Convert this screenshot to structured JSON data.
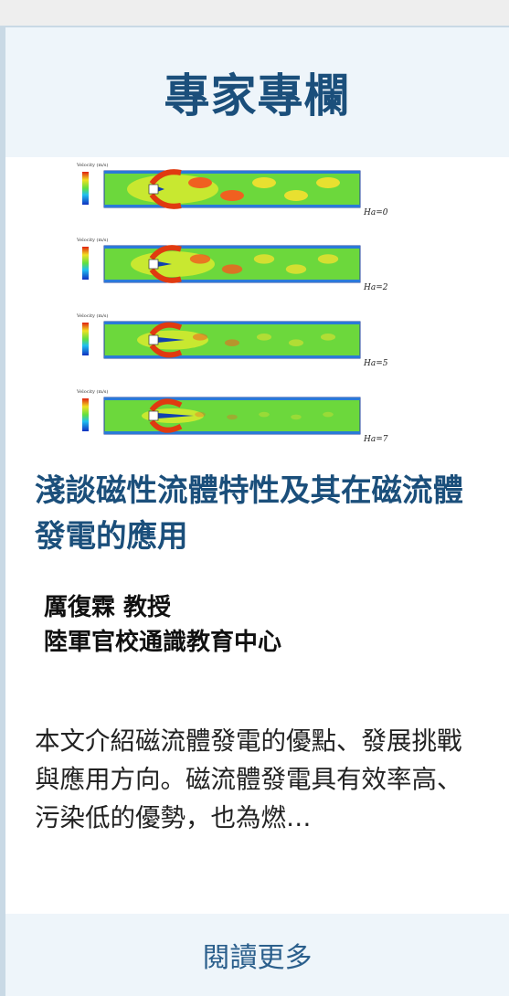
{
  "header": {
    "title": "專家專欄"
  },
  "figure": {
    "legend_title": "Velocity (m/s)",
    "panels": [
      {
        "label": "Ha=0"
      },
      {
        "label": "Ha=2"
      },
      {
        "label": "Ha=5"
      },
      {
        "label": "Ha=7"
      }
    ]
  },
  "article": {
    "title": "淺談磁性流體特性及其在磁流體發電的應用",
    "author": "厲復霖 教授",
    "affiliation": "陸軍官校通識教育中心",
    "summary": "本文介紹磁流體發電的優點、發展挑戰與應用方向。磁流體發電具有效率高、污染低的優勢，也為燃…"
  },
  "footer": {
    "button": "閱讀更多"
  }
}
